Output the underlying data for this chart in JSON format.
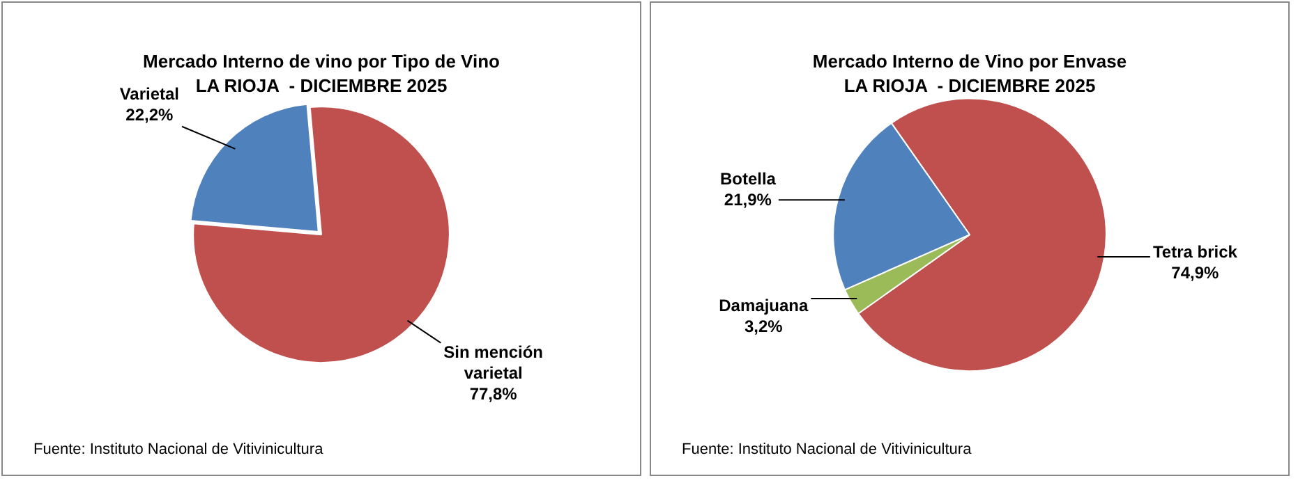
{
  "chart_data": [
    {
      "type": "pie",
      "title": "Mercado Interno de vino por Tipo de Vino",
      "subtitle": "LA RIOJA  - DICIEMBRE 2025",
      "categories": [
        "Varietal",
        "Sin mención varietal"
      ],
      "values": [
        22.2,
        77.8
      ],
      "value_labels": [
        "22,2%",
        "77,8%"
      ],
      "colors": [
        "#4f81bd",
        "#c0504d"
      ],
      "legend": false,
      "annotations": [
        "Fuente: Instituto Nacional de Vitivinicultura"
      ]
    },
    {
      "type": "pie",
      "title": "Mercado Interno de Vino por Envase",
      "subtitle": "LA RIOJA  - DICIEMBRE 2025",
      "categories": [
        "Tetra brick",
        "Damajuana",
        "Botella"
      ],
      "values": [
        74.9,
        3.2,
        21.9
      ],
      "value_labels": [
        "74,9%",
        "3,2%",
        "21,9%"
      ],
      "colors": [
        "#c0504d",
        "#9bbb59",
        "#4f81bd"
      ],
      "legend": false,
      "annotations": [
        "Fuente: Instituto Nacional de Vitivinicultura"
      ]
    }
  ]
}
